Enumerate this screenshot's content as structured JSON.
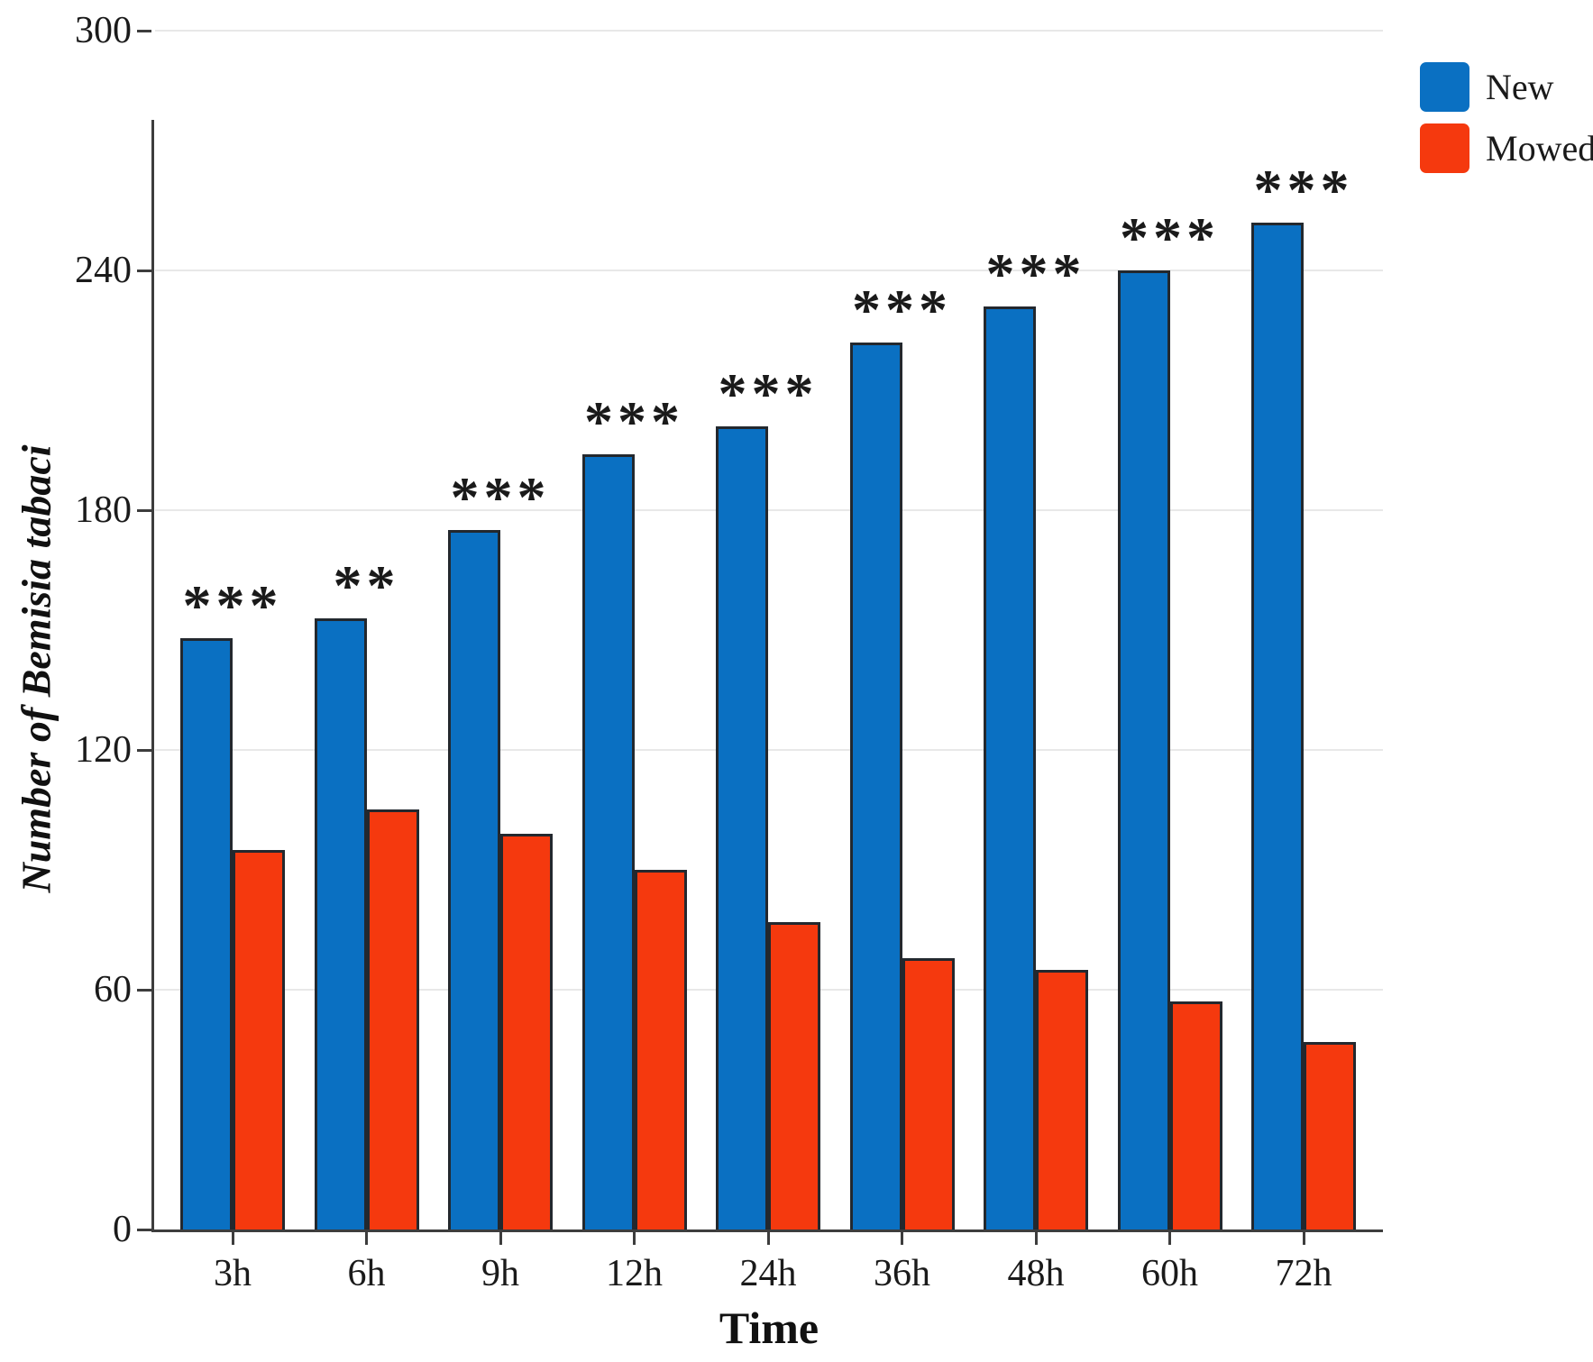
{
  "figure": {
    "background": "#ffffff",
    "text_color": "#1a1a1a",
    "axis_color": "#3d3d3d",
    "grid_color": "#e8e8e8",
    "bar_border_color": "#23282e"
  },
  "legend": {
    "items": [
      {
        "label": "New",
        "color": "#0a70c2"
      },
      {
        "label": "Mowed",
        "color": "#f5390e"
      }
    ]
  },
  "chart_data": {
    "type": "bar",
    "title": "",
    "xlabel": "Time",
    "ylabel": "Number of Bemisia tabaci",
    "categories": [
      "3h",
      "6h",
      "9h",
      "12h",
      "24h",
      "36h",
      "48h",
      "60h",
      "72h"
    ],
    "series": [
      {
        "name": "New",
        "color": "#0a70c2",
        "values": [
          148,
          153,
          175,
          194,
          201,
          222,
          231,
          240,
          252
        ]
      },
      {
        "name": "Mowed",
        "color": "#f5390e",
        "values": [
          95,
          105,
          99,
          90,
          77,
          68,
          65,
          57,
          47
        ]
      }
    ],
    "significance_labels": [
      "***",
      "**",
      "***",
      "***",
      "***",
      "***",
      "***",
      "***",
      "***"
    ],
    "yticks": [
      0,
      60,
      120,
      180,
      240,
      300
    ],
    "ylim": [
      0,
      300
    ],
    "grid": true,
    "legend_position": "top-right"
  }
}
